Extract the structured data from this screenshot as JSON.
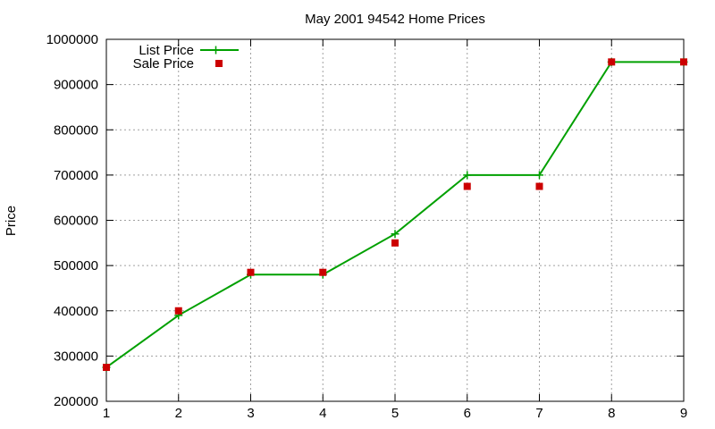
{
  "chart_data": {
    "type": "line",
    "title": "May 2001 94542 Home Prices",
    "xlabel": "",
    "ylabel": "Price",
    "x": [
      1,
      2,
      3,
      4,
      5,
      6,
      7,
      8,
      9
    ],
    "xlim": [
      1,
      9
    ],
    "ylim": [
      200000,
      1000000
    ],
    "xticks": [
      "1",
      "2",
      "3",
      "4",
      "5",
      "6",
      "7",
      "8",
      "9"
    ],
    "yticks": [
      "200000",
      "300000",
      "400000",
      "500000",
      "600000",
      "700000",
      "800000",
      "900000",
      "1000000"
    ],
    "grid": true,
    "legend_position": "top-left",
    "series": [
      {
        "name": "List Price",
        "style": "line-points",
        "color": "#00a000",
        "values": [
          275000,
          390000,
          480000,
          480000,
          570000,
          700000,
          700000,
          950000,
          950000
        ]
      },
      {
        "name": "Sale Price",
        "style": "points",
        "color": "#cc0000",
        "values": [
          275000,
          400000,
          485000,
          485000,
          550000,
          675000,
          675000,
          950000,
          950000
        ]
      }
    ]
  }
}
